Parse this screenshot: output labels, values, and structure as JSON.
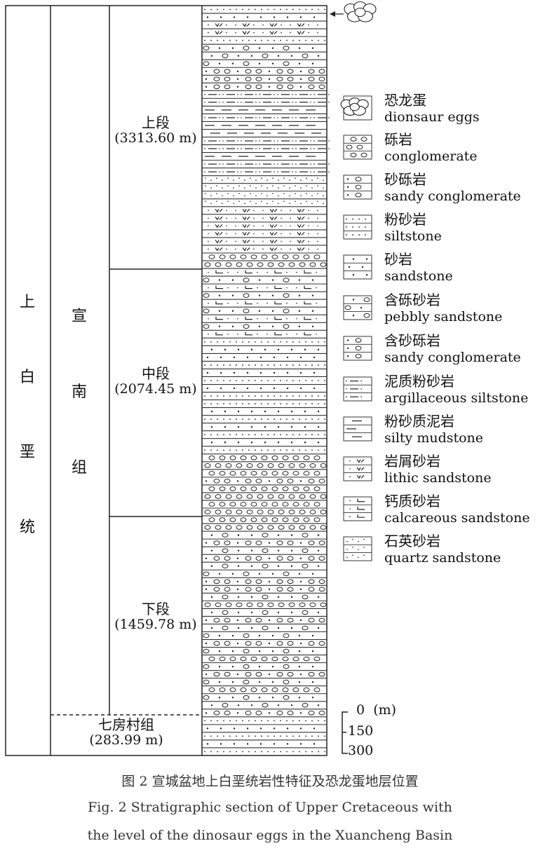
{
  "units": {
    "series": "上白垩统",
    "group": "宣南组",
    "members": [
      {
        "name": "上段",
        "thickness": "(3313.60 m)"
      },
      {
        "name": "中段",
        "thickness": "(2074.45 m)"
      },
      {
        "name": "下段",
        "thickness": "(1459.78 m)"
      }
    ],
    "lower_group": {
      "name": "七房村组",
      "thickness": "(283.99 m)"
    }
  },
  "column": {
    "layers": "SDLLSPPPCCCAAMAMMAAMAAQQQQLLLLLLGGKPKPKPKPKSDDSDSDSSDSDSDSGGGCGGGGGGPCPCPPCCPGPCPPCPGPCPGPPCSDSDS",
    "egg_level_marker": "arrow-to-egg-icon"
  },
  "legend": [
    {
      "code": "E",
      "cn": "恐龙蛋",
      "en": "dionsaur eggs"
    },
    {
      "code": "G",
      "cn": "砾岩",
      "en": "conglomerate"
    },
    {
      "code": "C",
      "cn": "砂砾岩",
      "en": "sandy conglomerate"
    },
    {
      "code": "S",
      "cn": "粉砂岩",
      "en": "siltstone"
    },
    {
      "code": "D",
      "cn": "砂岩",
      "en": "sandstone"
    },
    {
      "code": "P",
      "cn": "含砾砂岩",
      "en": "pebbly sandstone"
    },
    {
      "code": "C2",
      "cn": "含砂砾岩",
      "en": "sandy conglomerate"
    },
    {
      "code": "A",
      "cn": "泥质粉砂岩",
      "en": "argillaceous siltstone"
    },
    {
      "code": "M",
      "cn": "粉砂质泥岩",
      "en": "silty mudstone"
    },
    {
      "code": "L",
      "cn": "岩屑砂岩",
      "en": "lithic sandstone"
    },
    {
      "code": "K",
      "cn": "钙质砂岩",
      "en": "calcareous sandstone"
    },
    {
      "code": "Q",
      "cn": "石英砂岩",
      "en": "quartz sandstone"
    }
  ],
  "scale": {
    "ticks": [
      "0",
      "150",
      "300"
    ],
    "unit": "(m)"
  },
  "caption": {
    "cn": "图 2 宣城盆地上白垩统岩性特征及恐龙蛋地层位置",
    "en1": "Fig. 2 Stratigraphic section of Upper Cretaceous with",
    "en2": "the level of the dinosaur eggs in the Xuancheng Basin"
  }
}
